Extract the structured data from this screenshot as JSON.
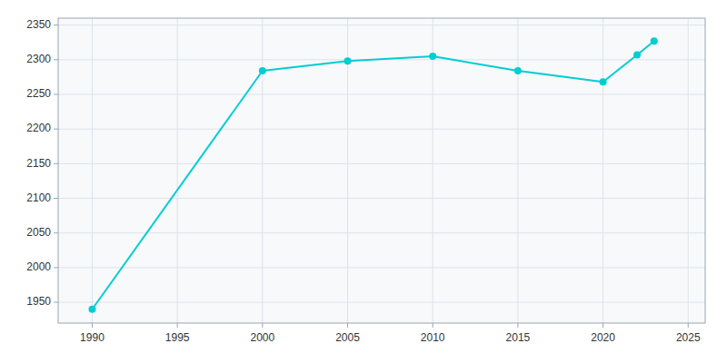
{
  "chart_data": {
    "type": "line",
    "x": [
      1990,
      2000,
      2005,
      2010,
      2015,
      2020,
      2022,
      2023
    ],
    "values": [
      1940,
      2284,
      2298,
      2305,
      2284,
      2268,
      2307,
      2327
    ],
    "color": "#00CED1",
    "marker": "circle",
    "xlim": [
      1988,
      2026
    ],
    "ylim": [
      1920,
      2360
    ],
    "xticks": [
      1990,
      1995,
      2000,
      2005,
      2010,
      2015,
      2020,
      2025
    ],
    "yticks": [
      1950,
      2000,
      2050,
      2100,
      2150,
      2200,
      2250,
      2300,
      2350
    ],
    "grid": true
  }
}
